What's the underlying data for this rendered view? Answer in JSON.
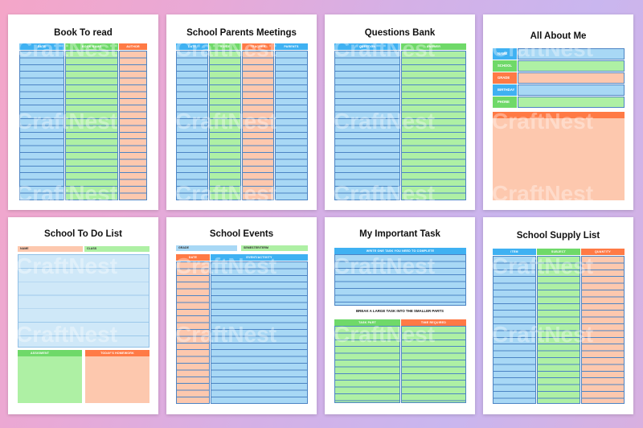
{
  "watermark": "CraftNest",
  "pages": {
    "book": {
      "title": "Book To read",
      "headers": [
        "DATE",
        "BOOK NAME",
        "AUTHOR"
      ]
    },
    "meetings": {
      "title": "School Parents Meetings",
      "headers": [
        "DATE",
        "VOICE",
        "TEACHER",
        "PARENTS"
      ]
    },
    "questions": {
      "title": "Questions Bank",
      "headers": [
        "QUESTION",
        "ANSWER"
      ]
    },
    "about": {
      "title": "All About Me",
      "labels": [
        "NAME",
        "SCHOOL",
        "GRADE",
        "BIRTHDAY",
        "PHONE"
      ]
    },
    "todo": {
      "title": "School To Do List",
      "name_label": "NAME",
      "class_label": "CLASS",
      "assignment_label": "ASSIGMENT",
      "homework_label": "TODAY'S HOMEWORK"
    },
    "events": {
      "title": "School Events",
      "grade_label": "GRADE",
      "semester_label": "SEMESTER/TERM",
      "headers": [
        "DATE",
        "EVENT/ACTIVITY"
      ]
    },
    "task": {
      "title": "My Important Task",
      "write_header": "WRITE ONE TASK YOU NEED TO COMPLETE",
      "break_text": "BREAK A LARGE TASK INTO THE SMALLER PARTS",
      "headers": [
        "TASK PART",
        "TIME REQUIRED"
      ]
    },
    "supply": {
      "title": "School Supply List",
      "headers": [
        "ITEM",
        "SUBJECT",
        "QUANTITY"
      ]
    }
  },
  "colors": {
    "blue": "#a8d8f5",
    "green": "#aef0a4",
    "orange": "#fdc8ae",
    "blue_header": "#3fb1f2",
    "green_header": "#6fd969",
    "orange_header": "#ff7a45"
  }
}
